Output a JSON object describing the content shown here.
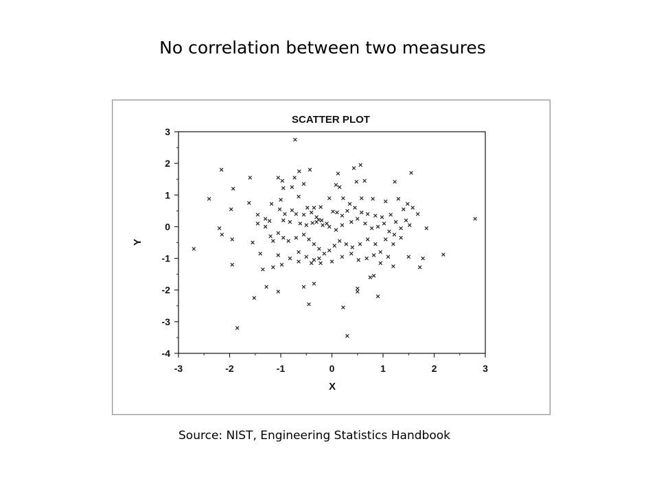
{
  "slide": {
    "title": "No correlation between two measures",
    "source": "Source: NIST, Engineering Statistics Handbook"
  },
  "chart_data": {
    "type": "scatter",
    "title": "SCATTER PLOT",
    "xlabel": "X",
    "ylabel": "Y",
    "xlim": [
      -3,
      3
    ],
    "ylim": [
      -4,
      3
    ],
    "xticks": [
      -3,
      -2,
      -1,
      0,
      1,
      2,
      3
    ],
    "yticks": [
      -4,
      -3,
      -2,
      -1,
      0,
      1,
      2,
      3
    ],
    "marker": "x",
    "grid": false,
    "series": [
      {
        "points": [
          [
            -0.72,
            2.75
          ],
          [
            0.56,
            1.95
          ],
          [
            1.55,
            1.7
          ],
          [
            -0.43,
            1.8
          ],
          [
            -2.16,
            1.8
          ],
          [
            -0.64,
            1.75
          ],
          [
            0.12,
            1.68
          ],
          [
            0.43,
            1.85
          ],
          [
            -1.6,
            1.55
          ],
          [
            -1.05,
            1.55
          ],
          [
            -0.97,
            1.45
          ],
          [
            -0.73,
            1.55
          ],
          [
            -0.55,
            1.35
          ],
          [
            -0.78,
            1.25
          ],
          [
            -0.95,
            1.22
          ],
          [
            -1.93,
            1.2
          ],
          [
            0.08,
            1.32
          ],
          [
            0.15,
            1.25
          ],
          [
            0.48,
            1.42
          ],
          [
            0.64,
            1.45
          ],
          [
            1.23,
            1.42
          ],
          [
            -2.4,
            0.88
          ],
          [
            -1.97,
            0.55
          ],
          [
            -1.62,
            0.75
          ],
          [
            -1.18,
            0.72
          ],
          [
            -1.0,
            0.85
          ],
          [
            -0.65,
            0.95
          ],
          [
            -0.48,
            0.6
          ],
          [
            -0.35,
            0.6
          ],
          [
            -0.22,
            0.62
          ],
          [
            -0.05,
            0.9
          ],
          [
            0.22,
            0.9
          ],
          [
            0.35,
            0.72
          ],
          [
            0.58,
            0.9
          ],
          [
            0.8,
            0.88
          ],
          [
            1.05,
            0.8
          ],
          [
            1.3,
            0.88
          ],
          [
            1.48,
            0.72
          ],
          [
            1.4,
            0.55
          ],
          [
            1.58,
            0.6
          ],
          [
            1.68,
            0.4
          ],
          [
            -1.02,
            0.55
          ],
          [
            -0.92,
            0.4
          ],
          [
            -0.78,
            0.52
          ],
          [
            -0.7,
            0.4
          ],
          [
            -0.55,
            0.38
          ],
          [
            -0.4,
            0.45
          ],
          [
            -0.3,
            0.3
          ],
          [
            -0.26,
            0.22
          ],
          [
            -0.3,
            0.15
          ],
          [
            -0.2,
            0.2
          ],
          [
            -0.1,
            0.1
          ],
          [
            0.02,
            0.48
          ],
          [
            0.1,
            0.45
          ],
          [
            0.2,
            0.35
          ],
          [
            0.3,
            0.5
          ],
          [
            0.45,
            0.6
          ],
          [
            0.58,
            0.45
          ],
          [
            0.7,
            0.4
          ],
          [
            0.85,
            0.35
          ],
          [
            0.98,
            0.3
          ],
          [
            1.15,
            0.38
          ],
          [
            1.25,
            0.15
          ],
          [
            1.35,
            -0.05
          ],
          [
            1.52,
            0.05
          ],
          [
            -1.45,
            0.38
          ],
          [
            -1.3,
            0.25
          ],
          [
            -1.22,
            0.18
          ],
          [
            -1.3,
            0.0
          ],
          [
            -1.45,
            0.1
          ],
          [
            -0.95,
            0.2
          ],
          [
            -0.82,
            0.15
          ],
          [
            -0.62,
            0.1
          ],
          [
            -0.5,
            0.05
          ],
          [
            -0.38,
            0.12
          ],
          [
            -0.18,
            0.05
          ],
          [
            -0.05,
            0.0
          ],
          [
            0.08,
            -0.1
          ],
          [
            0.2,
            0.05
          ],
          [
            0.38,
            0.15
          ],
          [
            0.5,
            0.25
          ],
          [
            0.65,
            0.1
          ],
          [
            0.78,
            -0.05
          ],
          [
            0.9,
            0.0
          ],
          [
            1.02,
            0.1
          ],
          [
            1.12,
            -0.15
          ],
          [
            1.22,
            -0.25
          ],
          [
            1.05,
            -0.4
          ],
          [
            1.2,
            -0.55
          ],
          [
            1.35,
            -0.35
          ],
          [
            -2.2,
            -0.05
          ],
          [
            -2.15,
            -0.25
          ],
          [
            -1.95,
            -0.4
          ],
          [
            -1.55,
            -0.5
          ],
          [
            -1.2,
            -0.3
          ],
          [
            -1.15,
            -0.45
          ],
          [
            -1.05,
            -0.2
          ],
          [
            -0.95,
            -0.35
          ],
          [
            -0.85,
            -0.45
          ],
          [
            -0.7,
            -0.35
          ],
          [
            -0.55,
            -0.25
          ],
          [
            -0.45,
            -0.4
          ],
          [
            -0.35,
            -0.55
          ],
          [
            -0.25,
            -0.7
          ],
          [
            -0.15,
            -0.85
          ],
          [
            -0.05,
            -0.75
          ],
          [
            0.05,
            -0.6
          ],
          [
            0.15,
            -0.45
          ],
          [
            0.28,
            -0.55
          ],
          [
            0.4,
            -0.65
          ],
          [
            0.55,
            -0.55
          ],
          [
            0.7,
            -0.4
          ],
          [
            0.85,
            -0.55
          ],
          [
            0.95,
            -0.8
          ],
          [
            1.1,
            -0.95
          ],
          [
            -2.7,
            -0.7
          ],
          [
            -1.4,
            -0.85
          ],
          [
            -1.05,
            -0.9
          ],
          [
            -0.82,
            -1.0
          ],
          [
            -0.65,
            -0.8
          ],
          [
            -0.5,
            -0.95
          ],
          [
            -0.35,
            -1.05
          ],
          [
            -0.22,
            -1.15
          ],
          [
            0.0,
            -1.1
          ],
          [
            0.2,
            -0.95
          ],
          [
            0.38,
            -0.85
          ],
          [
            0.52,
            -1.05
          ],
          [
            0.68,
            -1.0
          ],
          [
            0.82,
            -0.9
          ],
          [
            0.95,
            -1.15
          ],
          [
            1.5,
            -0.95
          ],
          [
            1.78,
            -1.0
          ],
          [
            2.18,
            -0.88
          ],
          [
            1.72,
            -1.28
          ],
          [
            -1.95,
            -1.2
          ],
          [
            -1.35,
            -1.35
          ],
          [
            -1.15,
            -1.28
          ],
          [
            -0.98,
            -1.2
          ],
          [
            -0.65,
            -1.1
          ],
          [
            -0.4,
            -1.15
          ],
          [
            -0.25,
            -1.0
          ],
          [
            1.2,
            -1.25
          ],
          [
            0.75,
            -1.6
          ],
          [
            0.82,
            -1.55
          ],
          [
            -0.55,
            -1.9
          ],
          [
            -0.35,
            -1.8
          ],
          [
            -1.28,
            -1.9
          ],
          [
            -1.05,
            -2.05
          ],
          [
            0.5,
            -1.95
          ],
          [
            0.5,
            -2.05
          ],
          [
            0.9,
            -2.2
          ],
          [
            -1.52,
            -2.25
          ],
          [
            -0.45,
            -2.45
          ],
          [
            0.22,
            -2.55
          ],
          [
            -1.85,
            -3.2
          ],
          [
            0.3,
            -3.45
          ],
          [
            2.8,
            0.25
          ],
          [
            1.85,
            -0.05
          ],
          [
            1.45,
            0.2
          ]
        ]
      }
    ]
  }
}
